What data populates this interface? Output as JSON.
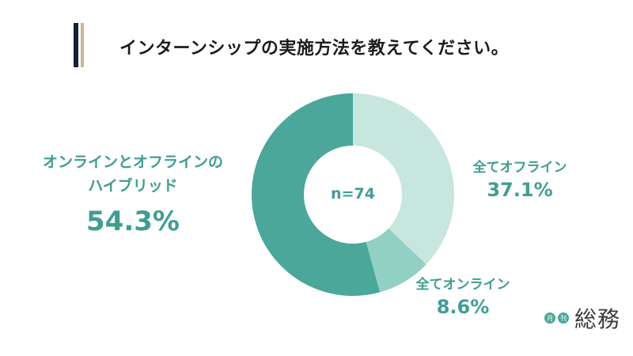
{
  "header": {
    "title": "インターンシップの実施方法を教えてください。"
  },
  "chart_data": {
    "type": "pie",
    "sample": "n=74",
    "categories": [
      "全てオフライン",
      "全てオンライン",
      "オンラインとオフラインのハイブリッド"
    ],
    "values": [
      37.1,
      8.6,
      54.3
    ],
    "labels": {
      "offline_name": "全てオフライン",
      "offline_pct": "37.1%",
      "online_name": "全てオンライン",
      "online_pct": "8.6%",
      "hybrid_name_line1": "オンラインとオフラインの",
      "hybrid_name_line2": "ハイブリッド",
      "hybrid_pct": "54.3%"
    },
    "colors": [
      "#c6e6de",
      "#92d0c4",
      "#4aa79a"
    ]
  },
  "logo": {
    "badge_1": "月",
    "badge_2": "刊",
    "word": "総務"
  }
}
